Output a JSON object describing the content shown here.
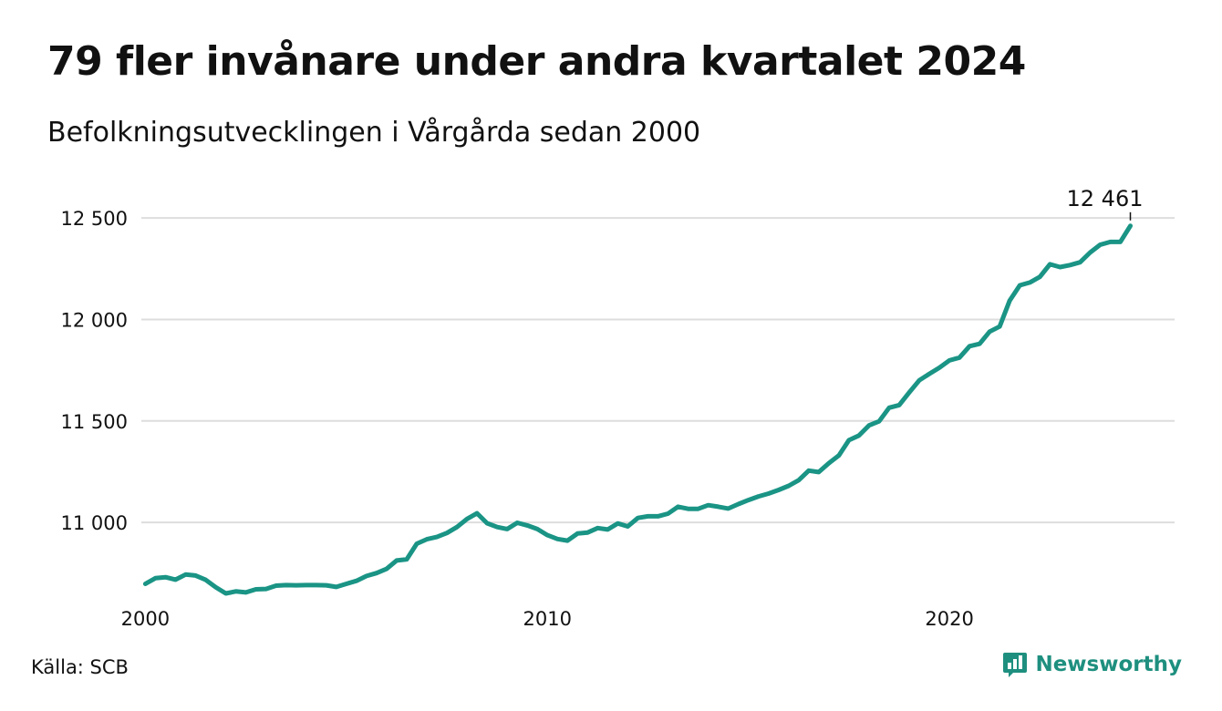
{
  "title": "79 fler invånare under andra kvartalet 2024",
  "subtitle": "Befolkningsutvecklingen i Vårgårda sedan 2000",
  "source": "Källa: SCB",
  "brand": {
    "name": "Newsworthy",
    "icon": "newsworthy-logo-icon"
  },
  "colors": {
    "line": "#1a9485",
    "grid": "#dddddd",
    "brand": "#1e8f7f"
  },
  "chart_data": {
    "type": "line",
    "title": "79 fler invånare under andra kvartalet 2024",
    "subtitle": "Befolkningsutvecklingen i Vårgårda sedan 2000",
    "xlabel": "",
    "ylabel": "",
    "x_start": 2000.0,
    "x_step": 0.25,
    "xlim": [
      1999.9,
      2025.6
    ],
    "ylim": [
      10650,
      12550
    ],
    "x_ticks": [
      2000,
      2010,
      2020
    ],
    "x_tick_labels": [
      "2000",
      "2010",
      "2020"
    ],
    "y_ticks": [
      11000,
      11500,
      12000,
      12500
    ],
    "y_tick_labels": [
      "11 000",
      "11 500",
      "12 000",
      "12 500"
    ],
    "grid": true,
    "legend": "none",
    "end_label": "12 461",
    "series": [
      {
        "values": [
          10697,
          10725,
          10730,
          10718,
          10743,
          10738,
          10717,
          10680,
          10650,
          10660,
          10655,
          10670,
          10672,
          10688,
          10691,
          10690,
          10691,
          10691,
          10690,
          10682,
          10697,
          10712,
          10736,
          10750,
          10771,
          10812,
          10818,
          10895,
          10917,
          10928,
          10948,
          10977,
          11017,
          11045,
          10996,
          10977,
          10967,
          10998,
          10985,
          10967,
          10937,
          10918,
          10910,
          10945,
          10950,
          10972,
          10965,
          10995,
          10980,
          11022,
          11030,
          11030,
          11043,
          11077,
          11067,
          11067,
          11085,
          11077,
          11068,
          11090,
          11110,
          11128,
          11142,
          11160,
          11180,
          11208,
          11255,
          11248,
          11292,
          11330,
          11405,
          11428,
          11478,
          11498,
          11565,
          11578,
          11640,
          11700,
          11732,
          11762,
          11798,
          11812,
          11868,
          11880,
          11940,
          11965,
          12093,
          12168,
          12182,
          12210,
          12272,
          12258,
          12268,
          12282,
          12330,
          12368,
          12382,
          12382,
          12461
        ]
      }
    ]
  }
}
